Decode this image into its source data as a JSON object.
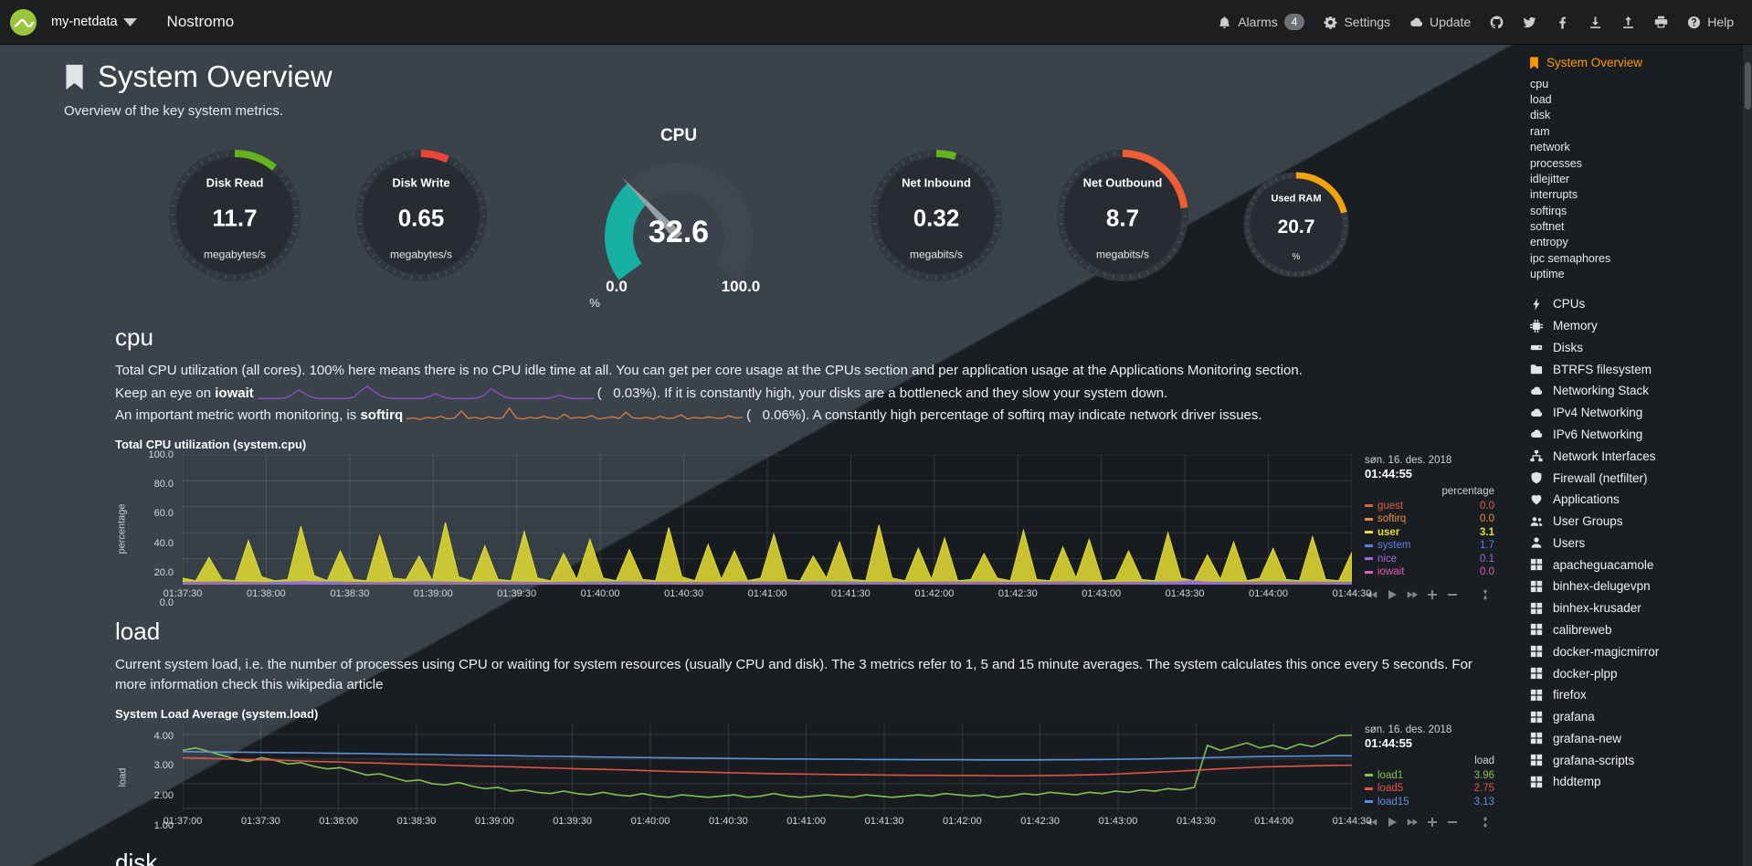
{
  "navbar": {
    "brand": "my-netdata",
    "hostname": "Nostromo",
    "alarms": "Alarms",
    "alarms_badge": "4",
    "settings": "Settings",
    "update": "Update",
    "help": "Help"
  },
  "header": {
    "title": "System Overview",
    "subtitle": "Overview of the key system metrics."
  },
  "gauges": {
    "disk_read": {
      "title": "Disk Read",
      "value": "11.7",
      "unit": "megabytes/s",
      "color": "#63b31c",
      "pct": 0.11
    },
    "disk_write": {
      "title": "Disk Write",
      "value": "0.65",
      "unit": "megabytes/s",
      "color": "#ef4336",
      "pct": 0.07
    },
    "cpu": {
      "title": "CPU",
      "value": "32.6",
      "min": "0.0",
      "max": "100.0",
      "unit": "%",
      "color": "#17b0a2",
      "pct": 0.326
    },
    "net_inbound": {
      "title": "Net Inbound",
      "value": "0.32",
      "unit": "megabits/s",
      "color": "#63b31c",
      "pct": 0.05
    },
    "net_outbound": {
      "title": "Net Outbound",
      "value": "8.7",
      "unit": "megabits/s",
      "color": "#ef5d32",
      "pct": 0.23
    },
    "used_ram": {
      "title": "Used RAM",
      "value": "20.7",
      "unit": "%",
      "color": "#f3a30a",
      "pct": 0.21
    }
  },
  "sections": {
    "cpu": {
      "heading": "cpu",
      "intro": "Total CPU utilization (all cores). 100% here means there is no CPU idle time at all. You can get per core usage at the CPUs section and per application usage at the Applications Monitoring section.",
      "iowait_line": {
        "pre": "Keep an eye on ",
        "term": "iowait",
        "post": "(   0.03%). If it is constantly high, your disks are a bottleneck and they slow your system down."
      },
      "softirq_line": {
        "pre": "An important metric worth monitoring, is ",
        "term": "softirq",
        "post": "(   0.06%). A constantly high percentage of softirq may indicate network driver issues."
      },
      "iowait_spark": {
        "color": "#8d50c4",
        "values": [
          0,
          0,
          0,
          0,
          0.1,
          0.6,
          1.4,
          0.7,
          0.2,
          0,
          0,
          0,
          0,
          0,
          0.2,
          1.2,
          2,
          1.1,
          0.4,
          0.1,
          0,
          0,
          0,
          0,
          0,
          0.3,
          0.8,
          0.3,
          0,
          0,
          0,
          0,
          0.1,
          0.5,
          1.6,
          0.9,
          0.3,
          0,
          0,
          0,
          0,
          0,
          0,
          0.2,
          0.6,
          0.2,
          0,
          0,
          0,
          0
        ]
      },
      "softirq_spark": {
        "color": "#e07e3c",
        "values": [
          0.3,
          0.5,
          0.2,
          0.6,
          0.4,
          0.8,
          0.3,
          0.5,
          1.8,
          0.4,
          0.6,
          0.3,
          0.7,
          0.4,
          0.5,
          2.4,
          0.5,
          0.3,
          0.6,
          0.4,
          0.8,
          0.5,
          0.3,
          1.2,
          0.4,
          0.6,
          0.5,
          0.9,
          0.3,
          0.5,
          0.7,
          0.4,
          1.6,
          0.5,
          0.4,
          0.6,
          0.3,
          0.8,
          0.4,
          0.5,
          1.1,
          0.3,
          0.6,
          0.4,
          0.7,
          0.5,
          0.4,
          0.9,
          0.5,
          0.6
        ]
      }
    },
    "load": {
      "heading": "load",
      "intro": "Current system load, i.e. the number of processes using CPU or waiting for system resources (usually CPU and disk). The 3 metrics refer to 1, 5 and 15 minute averages. The system calculates this once every 5 seconds. For more information check this wikipedia article"
    },
    "disk": {
      "heading": "disk"
    }
  },
  "chart_data": [
    {
      "type": "area",
      "title": "Total CPU utilization (system.cpu)",
      "ylabel": "percentage",
      "ylim": [
        0,
        100
      ],
      "y_ticks": [
        "100.0",
        "80.0",
        "60.0",
        "40.0",
        "20.0",
        "0.0"
      ],
      "x_ticks": [
        "01:37:30",
        "01:38:00",
        "01:38:30",
        "01:39:00",
        "01:39:30",
        "01:40:00",
        "01:40:30",
        "01:41:00",
        "01:41:30",
        "01:42:00",
        "01:42:30",
        "01:43:00",
        "01:43:30",
        "01:44:00",
        "01:44:30"
      ],
      "legend": {
        "date": "søn. 16. des. 2018",
        "time": "01:44:55",
        "unit": "percentage",
        "entries": [
          {
            "name": "guest",
            "value": "0.0",
            "color": "#d9604b"
          },
          {
            "name": "softirq",
            "value": "0.0",
            "color": "#ee8b3a"
          },
          {
            "name": "user",
            "value": "3.1",
            "color": "#e4de36",
            "selected": true
          },
          {
            "name": "system",
            "value": "1.7",
            "color": "#5a7ee0"
          },
          {
            "name": "nice",
            "value": "0.1",
            "color": "#9a6bd8"
          },
          {
            "name": "iowait",
            "value": "0.0",
            "color": "#de5fb4"
          }
        ]
      },
      "series": [
        {
          "name": "user",
          "type": "area",
          "color": "#e0da32",
          "values": [
            5,
            3,
            21,
            4,
            3,
            34,
            6,
            3,
            4,
            45,
            7,
            3,
            26,
            4,
            3,
            38,
            5,
            4,
            22,
            3,
            48,
            6,
            3,
            30,
            4,
            3,
            41,
            5,
            3,
            24,
            4,
            35,
            5,
            3,
            27,
            4,
            3,
            44,
            6,
            3,
            31,
            4,
            26,
            3,
            5,
            39,
            4,
            3,
            22,
            5,
            33,
            4,
            3,
            46,
            5,
            3,
            28,
            4,
            36,
            3,
            4,
            24,
            5,
            3,
            42,
            4,
            3,
            29,
            5,
            35,
            3,
            4,
            26,
            4,
            3,
            40,
            5,
            3,
            23,
            4,
            33,
            3,
            5,
            28,
            4,
            3,
            37,
            4,
            3,
            25
          ]
        },
        {
          "name": "system",
          "type": "area",
          "color": "#5a7ee0",
          "values": [
            1.8,
            2.0,
            1.7,
            2.1,
            1.9,
            1.6,
            2.2,
            1.8,
            2.0,
            1.7,
            1.9,
            2.1,
            1.8,
            1.6,
            2.0,
            1.9,
            2.2,
            1.8,
            1.7,
            2.0,
            1.9,
            1.8,
            2.1,
            1.7,
            1.9,
            2.0,
            1.8,
            2.1,
            1.9,
            1.8
          ]
        },
        {
          "name": "softirq",
          "type": "area",
          "color": "#e0634a",
          "values": [
            0.8,
            1.0,
            0.7,
            0.9,
            0.8,
            1.1,
            0.8,
            0.7,
            1.0,
            0.8,
            0.9,
            0.7,
            0.8,
            1.0,
            0.9,
            0.8,
            0.7,
            0.9,
            1.0,
            0.8
          ]
        },
        {
          "name": "nice",
          "type": "area",
          "color": "#9a6bd8",
          "values": [
            0.3,
            0.2,
            0.3,
            2.5,
            0.3,
            0.2,
            0.3,
            0.2,
            0.3,
            0.2,
            0.2,
            0.3,
            0.2,
            0.3,
            0.2,
            0.3,
            0.2,
            0.2,
            0.3,
            0.2,
            0.3,
            0.2,
            0.3,
            0.2,
            0.3,
            3.0,
            0.2,
            0.3,
            0.2,
            0.3
          ]
        }
      ]
    },
    {
      "type": "line",
      "title": "System Load Average (system.load)",
      "ylabel": "load",
      "ylim": [
        0.85,
        4.4
      ],
      "y_ticks": [
        "4.00",
        "3.00",
        "2.00",
        "1.00"
      ],
      "x_ticks": [
        "01:37:00",
        "01:37:30",
        "01:38:00",
        "01:38:30",
        "01:39:00",
        "01:39:30",
        "01:40:00",
        "01:40:30",
        "01:41:00",
        "01:41:30",
        "01:42:00",
        "01:42:30",
        "01:43:00",
        "01:43:30",
        "01:44:00",
        "01:44:30"
      ],
      "legend": {
        "date": "søn. 16. des. 2018",
        "time": "01:44:55",
        "unit": "load",
        "entries": [
          {
            "name": "load1",
            "value": "3.96",
            "color": "#83c152"
          },
          {
            "name": "load5",
            "value": "2.75",
            "color": "#e25545"
          },
          {
            "name": "load15",
            "value": "3.13",
            "color": "#5b93dd"
          }
        ]
      },
      "series": [
        {
          "name": "load1",
          "type": "line",
          "color": "#83c152",
          "values": [
            3.35,
            3.45,
            3.3,
            3.15,
            3.0,
            2.9,
            3.05,
            2.95,
            2.8,
            2.85,
            2.7,
            2.6,
            2.65,
            2.5,
            2.35,
            2.4,
            2.25,
            2.1,
            2.15,
            2.0,
            1.95,
            2.05,
            1.9,
            1.8,
            1.85,
            1.7,
            1.75,
            1.65,
            1.6,
            1.7,
            1.6,
            1.55,
            1.65,
            1.55,
            1.5,
            1.6,
            1.5,
            1.45,
            1.55,
            1.5,
            1.45,
            1.5,
            1.55,
            1.45,
            1.5,
            1.6,
            1.5,
            1.45,
            1.5,
            1.55,
            1.5,
            1.45,
            1.55,
            1.5,
            1.45,
            1.5,
            1.55,
            1.5,
            1.6,
            1.55,
            1.5,
            1.55,
            1.45,
            1.5,
            1.6,
            1.55,
            1.65,
            1.6,
            1.55,
            1.65,
            1.6,
            1.7,
            1.65,
            1.75,
            1.7,
            1.8,
            1.75,
            1.85,
            3.55,
            3.35,
            3.5,
            3.65,
            3.45,
            3.55,
            3.4,
            3.6,
            3.5,
            3.7,
            3.95,
            3.96
          ]
        },
        {
          "name": "load5",
          "type": "line",
          "color": "#e25545",
          "values": [
            3.05,
            3.03,
            3.0,
            2.98,
            2.96,
            2.93,
            2.9,
            2.88,
            2.85,
            2.83,
            2.8,
            2.78,
            2.75,
            2.72,
            2.7,
            2.68,
            2.65,
            2.63,
            2.6,
            2.58,
            2.56,
            2.53,
            2.5,
            2.48,
            2.46,
            2.44,
            2.42,
            2.4,
            2.39,
            2.38,
            2.37,
            2.36,
            2.35,
            2.34,
            2.34,
            2.33,
            2.33,
            2.32,
            2.32,
            2.33,
            2.34,
            2.36,
            2.38,
            2.42,
            2.46,
            2.5,
            2.55,
            2.6,
            2.64,
            2.68,
            2.7,
            2.72,
            2.74,
            2.75
          ]
        },
        {
          "name": "load15",
          "type": "line",
          "color": "#5b93dd",
          "values": [
            3.3,
            3.29,
            3.28,
            3.27,
            3.26,
            3.25,
            3.24,
            3.23,
            3.22,
            3.2,
            3.19,
            3.18,
            3.16,
            3.15,
            3.14,
            3.12,
            3.11,
            3.1,
            3.08,
            3.07,
            3.06,
            3.05,
            3.04,
            3.03,
            3.02,
            3.01,
            3.0,
            3.0,
            2.99,
            2.99,
            2.98,
            2.98,
            2.97,
            2.97,
            2.97,
            2.96,
            2.96,
            2.96,
            2.97,
            2.97,
            2.98,
            2.99,
            3.0,
            3.02,
            3.04,
            3.06,
            3.08,
            3.1,
            3.11,
            3.12,
            3.13,
            3.13
          ]
        }
      ]
    }
  ],
  "sidebar": {
    "active_label": "System Overview",
    "sub_items": [
      "cpu",
      "load",
      "disk",
      "ram",
      "network",
      "processes",
      "idlejitter",
      "interrupts",
      "softirqs",
      "softnet",
      "entropy",
      "ipc semaphores",
      "uptime"
    ],
    "sections": [
      {
        "icon": "bolt",
        "label": "CPUs"
      },
      {
        "icon": "memory",
        "label": "Memory"
      },
      {
        "icon": "disk",
        "label": "Disks"
      },
      {
        "icon": "folder",
        "label": "BTRFS filesystem"
      },
      {
        "icon": "cloud",
        "label": "Networking Stack"
      },
      {
        "icon": "cloud",
        "label": "IPv4 Networking"
      },
      {
        "icon": "cloud",
        "label": "IPv6 Networking"
      },
      {
        "icon": "sitemap",
        "label": "Network Interfaces"
      },
      {
        "icon": "shield",
        "label": "Firewall (netfilter)"
      },
      {
        "icon": "heart",
        "label": "Applications"
      },
      {
        "icon": "users",
        "label": "User Groups"
      },
      {
        "icon": "user",
        "label": "Users"
      },
      {
        "icon": "grid",
        "label": "apacheguacamole"
      },
      {
        "icon": "grid",
        "label": "binhex-delugevpn"
      },
      {
        "icon": "grid",
        "label": "binhex-krusader"
      },
      {
        "icon": "grid",
        "label": "calibreweb"
      },
      {
        "icon": "grid",
        "label": "docker-magicmirror"
      },
      {
        "icon": "grid",
        "label": "docker-plpp"
      },
      {
        "icon": "grid",
        "label": "firefox"
      },
      {
        "icon": "grid",
        "label": "grafana"
      },
      {
        "icon": "grid",
        "label": "grafana-new"
      },
      {
        "icon": "grid",
        "label": "grafana-scripts"
      },
      {
        "icon": "grid",
        "label": "hddtemp"
      }
    ]
  },
  "theme": {
    "accent_orange": "#FF9800",
    "gauge_teal": "#17b0a2",
    "bg_light": "#3a434b",
    "bg_dark": "#1a1e22"
  }
}
